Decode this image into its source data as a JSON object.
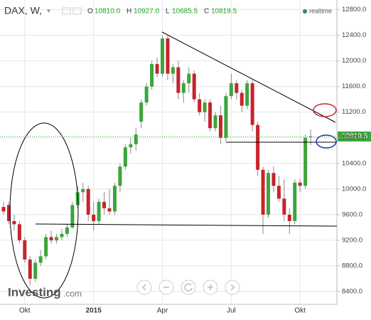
{
  "header": {
    "symbol": "DAX, W,",
    "O": "O",
    "open": "10810.0",
    "H": "H",
    "high": "10927.0",
    "L": "L",
    "low": "10685.5",
    "C": "C",
    "close": "10819.5",
    "status": "realtime"
  },
  "logo": {
    "brand": "Investing",
    "suffix": ".com"
  },
  "chart_data": {
    "type": "candlestick",
    "categories": [
      null,
      null,
      null,
      null,
      "Okt",
      null,
      null,
      null,
      null,
      null,
      null,
      null,
      null,
      null,
      null,
      null,
      null,
      "2015",
      null,
      null,
      null,
      null,
      null,
      null,
      null,
      null,
      null,
      null,
      null,
      null,
      "Apr",
      null,
      null,
      null,
      null,
      null,
      null,
      null,
      null,
      null,
      null,
      null,
      null,
      "Jul",
      null,
      null,
      null,
      null,
      null,
      null,
      null,
      null,
      null,
      null,
      null,
      null,
      "Okt",
      null,
      null
    ],
    "series": [
      {
        "name": "DAX",
        "open": [
          9720,
          9750,
          9500,
          9450,
          9200,
          8900,
          8600,
          8850,
          8950,
          9250,
          9200,
          9250,
          9300,
          9400,
          9750,
          9950,
          10000,
          9600,
          9500,
          9800,
          9700,
          9650,
          10050,
          10350,
          10650,
          10700,
          11050,
          11350,
          11600,
          11950,
          11800,
          12350,
          11800,
          11900,
          11500,
          11650,
          11800,
          11400,
          11200,
          11350,
          10950,
          11150,
          10800,
          11450,
          11650,
          11500,
          11300,
          11650,
          11000,
          10300,
          9600,
          10250,
          10050,
          9850,
          9600,
          9500,
          10100,
          10050,
          10810
        ],
        "high": [
          9800,
          9800,
          9600,
          9500,
          9250,
          8950,
          8900,
          9050,
          9300,
          9350,
          9300,
          9380,
          9450,
          9800,
          10050,
          10100,
          10050,
          9800,
          9850,
          9950,
          10000,
          10100,
          10400,
          10700,
          10800,
          10950,
          11400,
          11650,
          12000,
          12050,
          12400,
          12390,
          11950,
          12000,
          11700,
          11900,
          11850,
          11500,
          11400,
          11400,
          11200,
          11300,
          11500,
          11800,
          11700,
          11550,
          11700,
          11700,
          11050,
          10350,
          10300,
          10350,
          10200,
          10150,
          9700,
          10150,
          10150,
          10850,
          10927
        ],
        "low": [
          9600,
          9450,
          9350,
          9150,
          8850,
          8500,
          8550,
          8800,
          8900,
          9150,
          9150,
          9200,
          9250,
          9380,
          9700,
          9800,
          9500,
          9350,
          9450,
          9600,
          9600,
          9600,
          9950,
          10300,
          10550,
          10600,
          10950,
          11300,
          11550,
          11750,
          11750,
          11700,
          11650,
          11400,
          11350,
          11500,
          11350,
          11150,
          11050,
          10900,
          10900,
          10700,
          10750,
          11400,
          11400,
          11200,
          11250,
          10900,
          10200,
          9300,
          9550,
          9950,
          9800,
          9500,
          9300,
          9450,
          9950,
          10000,
          10685.5
        ],
        "close": [
          9650,
          9500,
          9450,
          9200,
          8900,
          8600,
          8850,
          8950,
          9250,
          9200,
          9250,
          9300,
          9400,
          9750,
          9950,
          10000,
          9600,
          9500,
          9800,
          9700,
          9650,
          10050,
          10350,
          10650,
          10700,
          10850,
          11350,
          11600,
          11950,
          11800,
          12350,
          11800,
          11900,
          11500,
          11650,
          11800,
          11400,
          11200,
          11350,
          10950,
          11150,
          10800,
          11450,
          11650,
          11500,
          11300,
          11650,
          11000,
          10300,
          9600,
          10250,
          10050,
          9850,
          9600,
          9500,
          10100,
          10050,
          10800,
          10819.5
        ],
        "up_color": "#3ca53c",
        "down_color": "#c8232c"
      }
    ],
    "ylim": [
      8200,
      12950
    ],
    "yticks": [
      {
        "value": 8400,
        "label": "8400.0"
      },
      {
        "value": 8800,
        "label": "8800.0"
      },
      {
        "value": 9200,
        "label": "9200.0"
      },
      {
        "value": 9600,
        "label": "9600.0"
      },
      {
        "value": 10000,
        "label": "10000.0"
      },
      {
        "value": 10400,
        "label": "10400.0"
      },
      {
        "value": 10800,
        "label": "10800.0"
      },
      {
        "value": 11200,
        "label": "11200.0"
      },
      {
        "value": 11600,
        "label": "11600.0"
      },
      {
        "value": 12000,
        "label": "12000.0"
      },
      {
        "value": 12400,
        "label": "12400.0"
      },
      {
        "value": 12800,
        "label": "12800.0"
      }
    ],
    "last_price": {
      "value": 10819.5,
      "label": "10819.5"
    },
    "grid": true
  }
}
